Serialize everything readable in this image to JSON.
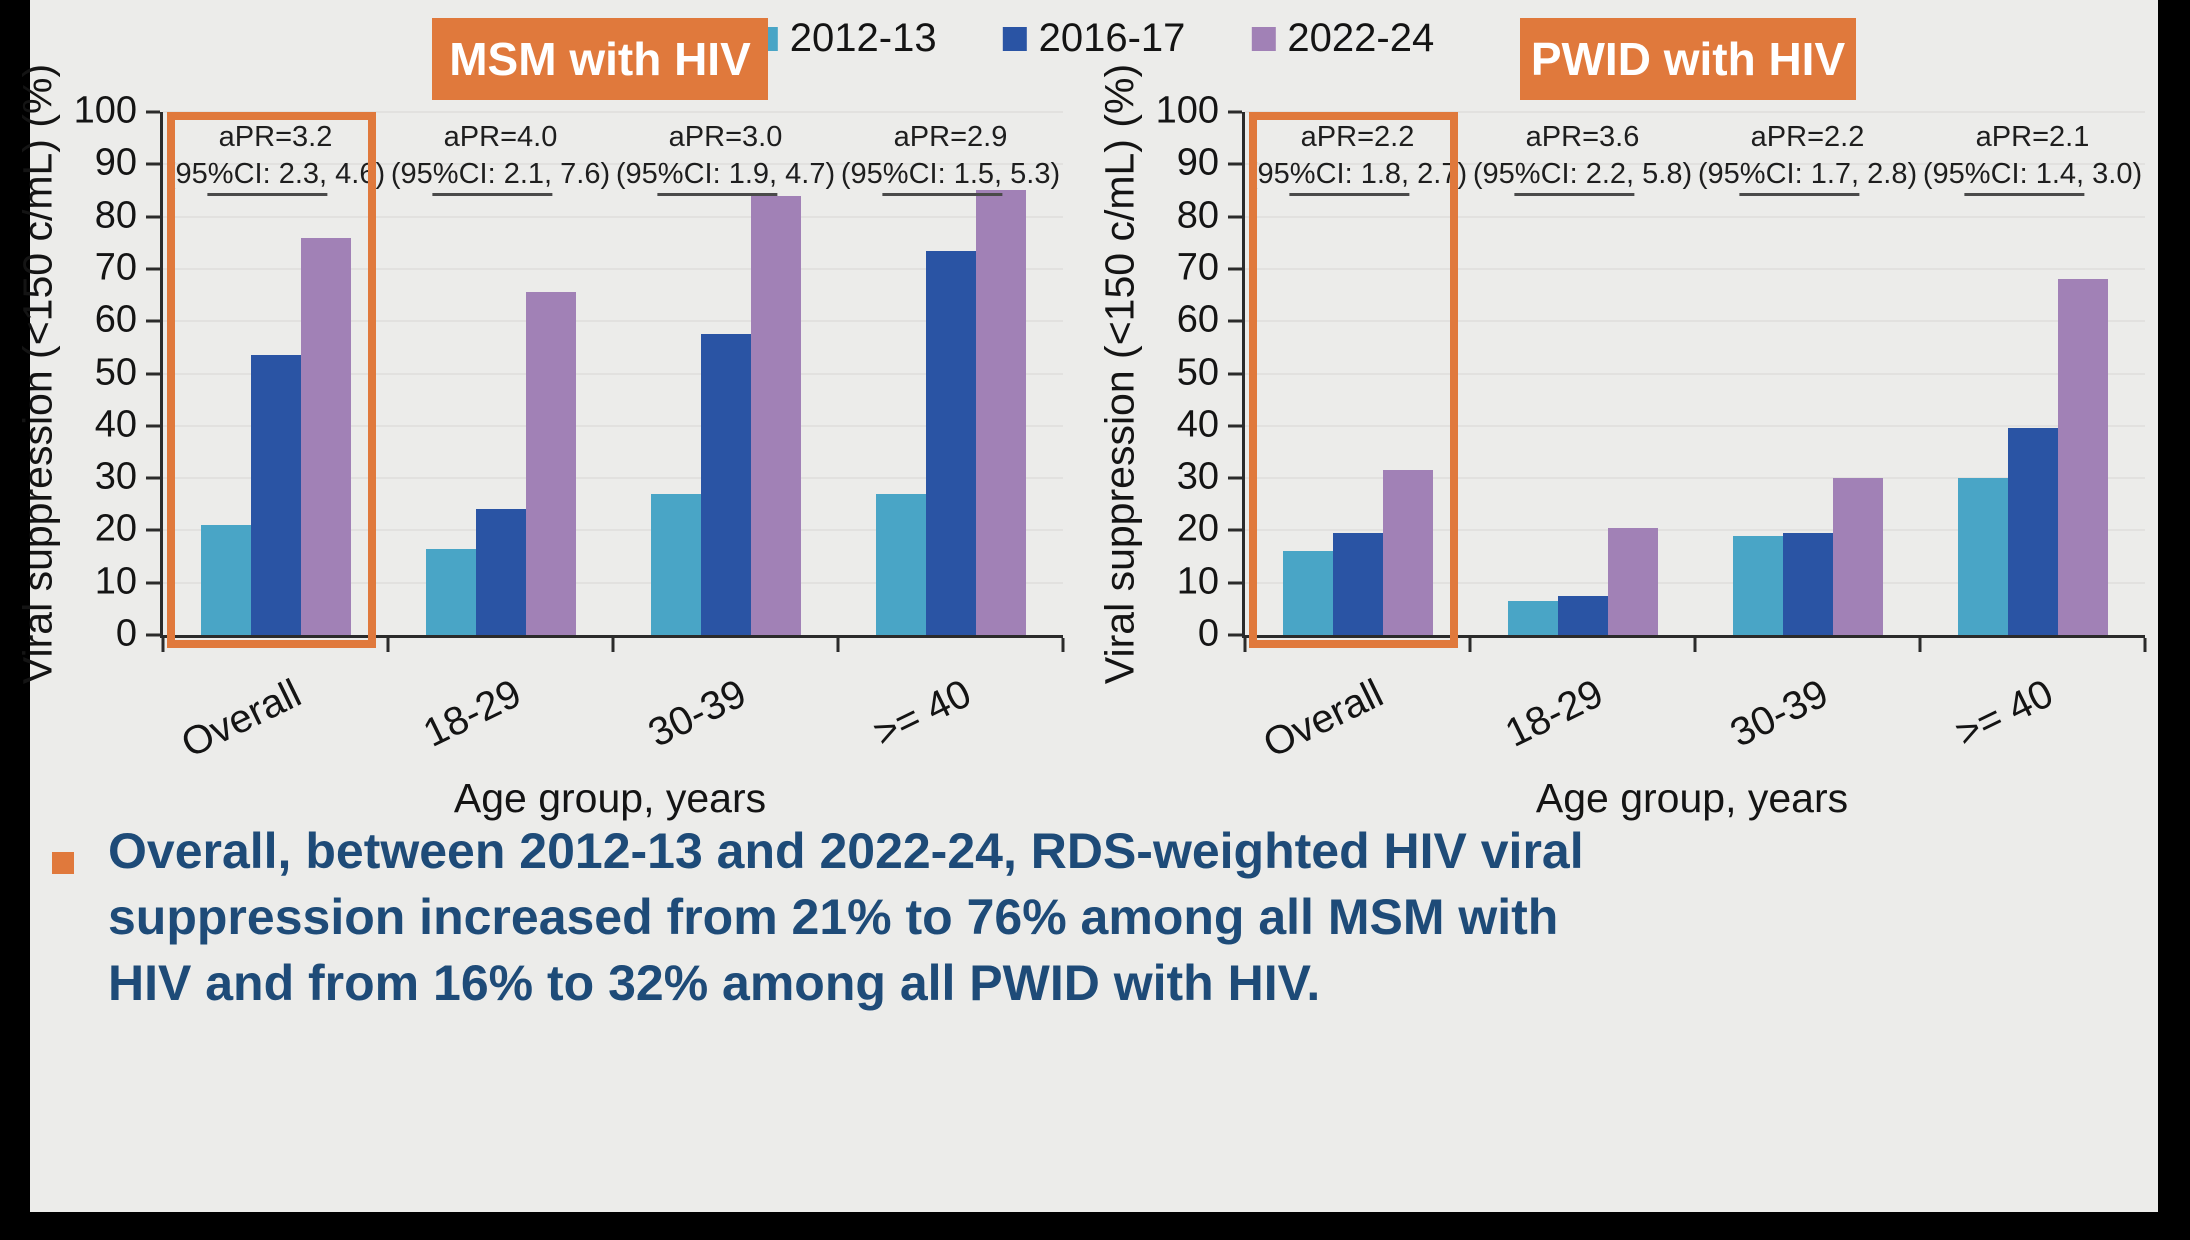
{
  "slide": {
    "legend": [
      {
        "label": "2012-13",
        "color": "#49A5C6"
      },
      {
        "label": "2016-17",
        "color": "#2A54A4"
      },
      {
        "label": "2022-24",
        "color": "#A181B6"
      }
    ],
    "bullet_text": "Overall, between 2012-13 and 2022-24, RDS-weighted HIV viral suppression increased from 21% to 76% among all MSM with HIV and from 16% to 32% among all PWID with HIV.",
    "accent_orange": "#E0793C",
    "text_navy": "#1E4B78"
  },
  "chart_data": [
    {
      "type": "bar",
      "title": "MSM with HIV",
      "categories": [
        "Overall",
        "18-29",
        "30-39",
        ">= 40"
      ],
      "series": [
        {
          "name": "2012-13",
          "values": [
            21,
            16.5,
            27,
            27
          ]
        },
        {
          "name": "2016-17",
          "values": [
            53.5,
            24,
            57.5,
            73.5
          ]
        },
        {
          "name": "2022-24",
          "values": [
            76,
            65.5,
            84,
            85
          ]
        }
      ],
      "annotations": [
        {
          "apr": "aPR=3.2",
          "ci": "(95%CI: 2.3, 4.6)"
        },
        {
          "apr": "aPR=4.0",
          "ci": "(95%CI: 2.1, 7.6)"
        },
        {
          "apr": "aPR=3.0",
          "ci": "(95%CI: 1.9, 4.7)"
        },
        {
          "apr": "aPR=2.9",
          "ci": "(95%CI: 1.5, 5.3)"
        }
      ],
      "xlabel": "Age group, years",
      "ylabel": "Viral suppression (<150 c/mL) (%)",
      "ylim": [
        0,
        100
      ],
      "ytick_step": 10,
      "grid": true,
      "highlight_group": "Overall"
    },
    {
      "type": "bar",
      "title": "PWID with HIV",
      "categories": [
        "Overall",
        "18-29",
        "30-39",
        ">= 40"
      ],
      "series": [
        {
          "name": "2012-13",
          "values": [
            16,
            6.5,
            19,
            30
          ]
        },
        {
          "name": "2016-17",
          "values": [
            19.5,
            7.5,
            19.5,
            39.5
          ]
        },
        {
          "name": "2022-24",
          "values": [
            31.5,
            20.5,
            30,
            68
          ]
        }
      ],
      "annotations": [
        {
          "apr": "aPR=2.2",
          "ci": "(95%CI: 1.8, 2.7)"
        },
        {
          "apr": "aPR=3.6",
          "ci": "(95%CI: 2.2, 5.8)"
        },
        {
          "apr": "aPR=2.2",
          "ci": "(95%CI: 1.7, 2.8)"
        },
        {
          "apr": "aPR=2.1",
          "ci": "(95%CI: 1.4, 3.0)"
        }
      ],
      "xlabel": "Age group, years",
      "ylabel": "Viral suppression (<150 c/mL) (%)",
      "ylim": [
        0,
        100
      ],
      "ytick_step": 10,
      "grid": true,
      "highlight_group": "Overall"
    }
  ]
}
